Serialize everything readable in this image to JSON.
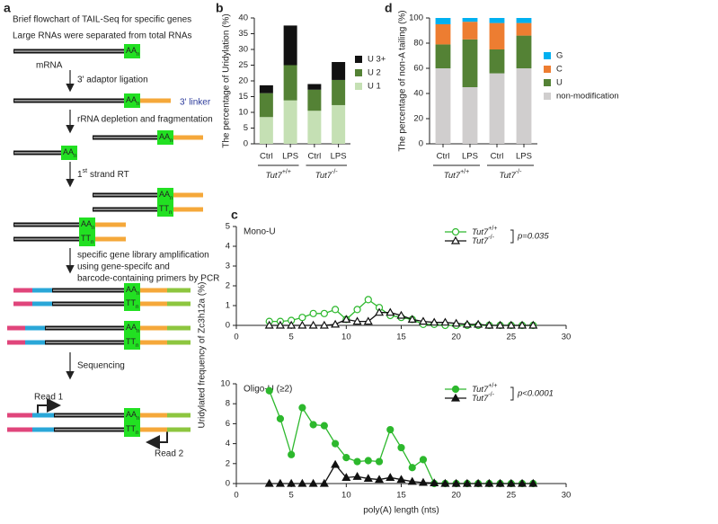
{
  "diagram": {
    "label": "a",
    "title": "Brief flowchart of TAIL-Seq for specific genes",
    "intro": "Large RNAs were separated from total RNAs",
    "mrna": "mRNA",
    "steps": [
      "3' adaptor ligation",
      "rRNA depletion and fragmentation",
      "strand RT",
      "specific gene library amplification",
      "using gene-specifc and",
      "barcode-containing primers by PCR",
      "Sequencing"
    ],
    "rt_number": "1",
    "rt_suffix": "st",
    "linker": "3' linker",
    "poly_a": "AA",
    "poly_t": "TT",
    "subscript": "n",
    "read1": "Read 1",
    "read2": "Read 2"
  },
  "chart_data": [
    {
      "type": "bar",
      "stacked": true,
      "panel": "b",
      "ylabel": "The percentage of Uridylation (%)",
      "categories": [
        "Ctrl",
        "LPS",
        "Ctrl",
        "LPS"
      ],
      "group_labels": [
        "Tut7+/+",
        "Tut7-/-"
      ],
      "ylim": [
        0,
        40
      ],
      "yticks": [
        0,
        5,
        10,
        15,
        20,
        25,
        30,
        35,
        40
      ],
      "series": [
        {
          "name": "U 1",
          "color": "#c5e0b4",
          "values": [
            8.5,
            13.8,
            10.5,
            12.3
          ]
        },
        {
          "name": "U 2",
          "color": "#548235",
          "values": [
            7.6,
            11.2,
            6.7,
            8.0
          ]
        },
        {
          "name": "U 3+",
          "color": "#111111",
          "values": [
            2.5,
            12.6,
            1.8,
            5.7
          ]
        }
      ]
    },
    {
      "type": "bar",
      "stacked": true,
      "panel": "d",
      "ylabel": "The percentage of non-A tailing (%)",
      "categories": [
        "Ctrl",
        "LPS",
        "Ctrl",
        "LPS"
      ],
      "group_labels": [
        "Tut7+/+",
        "Tut7-/-"
      ],
      "ylim": [
        0,
        100
      ],
      "yticks": [
        0,
        20,
        40,
        60,
        80,
        100
      ],
      "series": [
        {
          "name": "non-modification",
          "color": "#d0cece",
          "values": [
            60,
            45,
            56,
            60
          ]
        },
        {
          "name": "U",
          "color": "#548235",
          "values": [
            19,
            38,
            19,
            26
          ]
        },
        {
          "name": "C",
          "color": "#ed7d31",
          "values": [
            16,
            14,
            21,
            10
          ]
        },
        {
          "name": "G",
          "color": "#00b0f0",
          "values": [
            5,
            3,
            4,
            4
          ]
        }
      ]
    },
    {
      "type": "line",
      "panel": "c",
      "title": "Mono-U",
      "ylabel": "Uridylated frequency of Zc3h12a (%)",
      "markers": "open",
      "p_label": "p=0.035",
      "x": [
        3,
        4,
        5,
        6,
        7,
        8,
        9,
        10,
        11,
        12,
        13,
        14,
        15,
        16,
        17,
        18,
        19,
        20,
        21,
        22,
        23,
        24,
        25,
        26,
        27
      ],
      "xlim": [
        0,
        30
      ],
      "xticks": [
        0,
        5,
        10,
        15,
        20,
        25,
        30
      ],
      "ylim": [
        0,
        5
      ],
      "yticks": [
        0,
        1,
        2,
        3,
        4,
        5
      ],
      "series": [
        {
          "name": "Tut7+/+",
          "color": "#2db82d",
          "marker": "circle",
          "values": [
            0.2,
            0.2,
            0.25,
            0.4,
            0.6,
            0.6,
            0.8,
            0.3,
            0.8,
            1.3,
            0.9,
            0.5,
            0.4,
            0.3,
            0.05,
            0.05,
            0,
            0,
            0,
            0,
            0,
            0,
            0,
            0,
            0
          ]
        },
        {
          "name": "Tut7-/-",
          "color": "#111111",
          "marker": "triangle",
          "values": [
            0,
            0,
            0,
            0,
            0,
            0,
            0.05,
            0.3,
            0.2,
            0.2,
            0.65,
            0.65,
            0.5,
            0.3,
            0.2,
            0.15,
            0.15,
            0.1,
            0.05,
            0.05,
            0,
            0,
            0,
            0,
            0
          ]
        }
      ]
    },
    {
      "type": "line",
      "title": "Oligo-U (≥2)",
      "xlabel": "poly(A) length (nts)",
      "markers": "filled",
      "p_label": "p<0.0001",
      "x": [
        3,
        4,
        5,
        6,
        7,
        8,
        9,
        10,
        11,
        12,
        13,
        14,
        15,
        16,
        17,
        18,
        19,
        20,
        21,
        22,
        23,
        24,
        25,
        26,
        27
      ],
      "xlim": [
        0,
        30
      ],
      "xticks": [
        0,
        5,
        10,
        15,
        20,
        25,
        30
      ],
      "ylim": [
        0,
        10
      ],
      "yticks": [
        0,
        2,
        4,
        6,
        8,
        10
      ],
      "series": [
        {
          "name": "Tut7+/+",
          "color": "#2db82d",
          "marker": "circle",
          "values": [
            9.3,
            6.5,
            2.9,
            7.6,
            5.9,
            5.8,
            4,
            2.6,
            2.2,
            2.3,
            2.2,
            5.4,
            3.6,
            1.6,
            2.4,
            0,
            0,
            0,
            0,
            0,
            0,
            0,
            0,
            0,
            0
          ]
        },
        {
          "name": "Tut7-/-",
          "color": "#111111",
          "marker": "triangle",
          "values": [
            0,
            0,
            0,
            0,
            0,
            0,
            1.9,
            0.6,
            0.7,
            0.5,
            0.4,
            0.6,
            0.4,
            0.2,
            0.1,
            0.05,
            0,
            0,
            0,
            0,
            0,
            0,
            0,
            0,
            0
          ]
        }
      ]
    }
  ]
}
